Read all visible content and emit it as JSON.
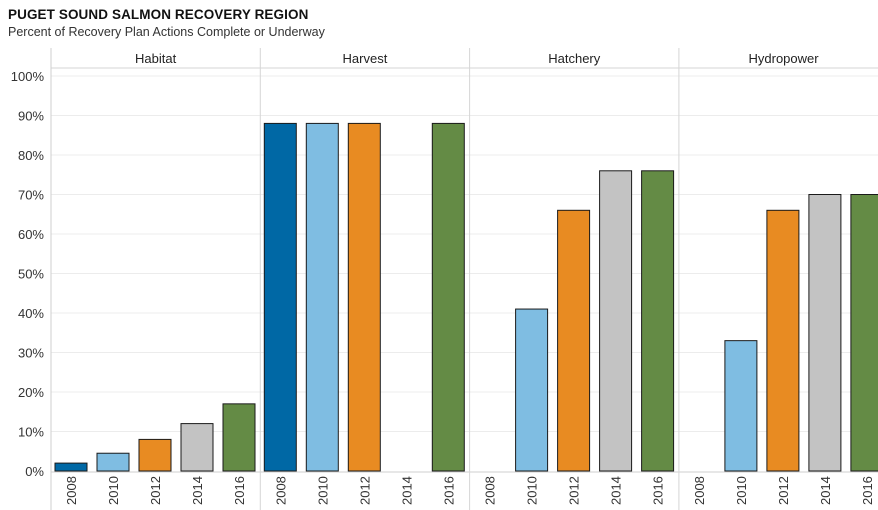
{
  "chart_data": {
    "type": "bar",
    "title": "PUGET SOUND SALMON RECOVERY REGION",
    "subtitle": "Percent of Recovery Plan Actions Complete or Underway",
    "ylim": [
      0,
      100
    ],
    "y_ticks": [
      "0%",
      "10%",
      "20%",
      "30%",
      "40%",
      "50%",
      "60%",
      "70%",
      "80%",
      "90%",
      "100%"
    ],
    "grid": "horizontal",
    "categories": [
      "2008",
      "2010",
      "2012",
      "2014",
      "2016"
    ],
    "colors": {
      "2008": "#0068a5",
      "2010": "#7fbde2",
      "2012": "#e88b22",
      "2014": "#c3c3c3",
      "2016": "#648b45"
    },
    "panels": [
      {
        "name": "Habitat",
        "values": [
          2,
          4.5,
          8,
          12,
          17
        ]
      },
      {
        "name": "Harvest",
        "values": [
          88,
          88,
          88,
          null,
          88
        ]
      },
      {
        "name": "Hatchery",
        "values": [
          null,
          41,
          66,
          76,
          76
        ]
      },
      {
        "name": "Hydropower",
        "values": [
          null,
          33,
          66,
          70,
          70
        ]
      }
    ]
  }
}
